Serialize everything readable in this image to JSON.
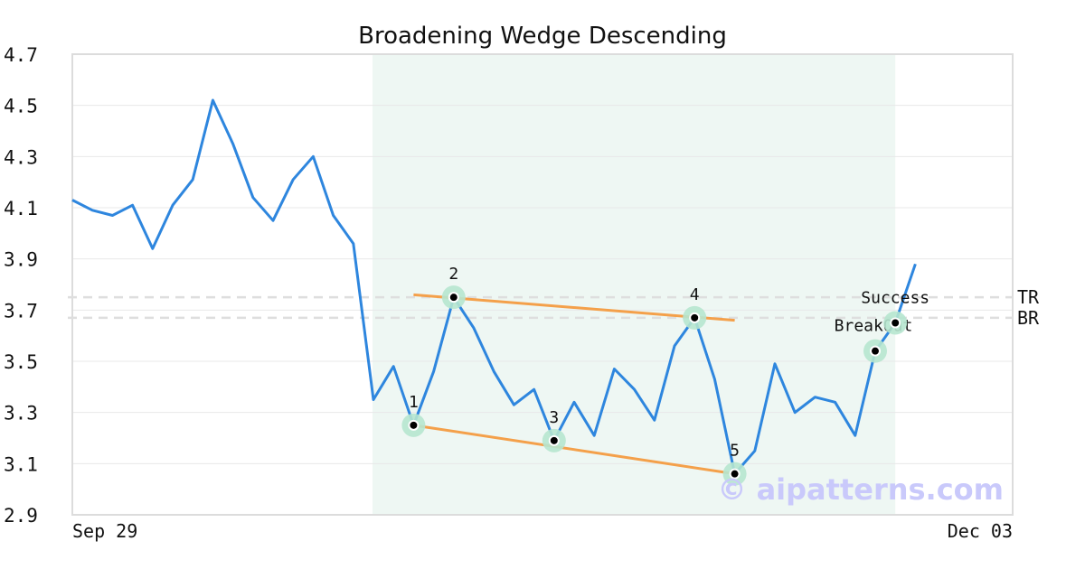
{
  "chart_data": {
    "type": "line",
    "title": "Broadening Wedge Descending",
    "xlabel": "",
    "ylabel": "",
    "ylim": [
      2.9,
      4.7
    ],
    "y_ticks": [
      "2.9",
      "3.1",
      "3.3",
      "3.5",
      "3.7",
      "3.9",
      "4.1",
      "4.3",
      "4.5",
      "4.7"
    ],
    "x_tick_labels": [
      "Sep 29",
      "Dec 03"
    ],
    "grid": true,
    "series": [
      {
        "values": [
          4.13,
          4.09,
          4.07,
          4.11,
          3.94,
          4.11,
          4.21,
          4.52,
          4.35,
          4.14,
          4.05,
          4.21,
          4.3,
          4.07,
          3.96,
          3.35,
          3.48,
          3.25,
          3.46,
          3.75,
          3.63,
          3.46,
          3.33,
          3.39,
          3.19,
          3.34,
          3.21,
          3.47,
          3.39,
          3.27,
          3.56,
          3.67,
          3.43,
          3.06,
          3.15,
          3.49,
          3.3,
          3.36,
          3.34,
          3.21,
          3.54,
          3.65,
          3.88
        ],
        "color": "#2e86de"
      }
    ],
    "pattern_region": {
      "start_index": 15,
      "end_index": 41,
      "color": "#eef7f3"
    },
    "pattern_points": [
      {
        "label": "1",
        "index": 17,
        "value": 3.25
      },
      {
        "label": "2",
        "index": 19,
        "value": 3.75
      },
      {
        "label": "3",
        "index": 24,
        "value": 3.19
      },
      {
        "label": "4",
        "index": 31,
        "value": 3.67
      },
      {
        "label": "5",
        "index": 33,
        "value": 3.06
      }
    ],
    "event_points": [
      {
        "label": "BreakOut",
        "index": 40,
        "value": 3.54
      },
      {
        "label": "Success",
        "index": 41,
        "value": 3.65
      }
    ],
    "trend_lines": [
      {
        "from_index": 17,
        "from_value": 3.76,
        "to_index": 33,
        "to_value": 3.66,
        "color": "#f4a04a"
      },
      {
        "from_index": 17,
        "from_value": 3.25,
        "to_index": 33,
        "to_value": 3.06,
        "color": "#f4a04a"
      }
    ],
    "reference_lines": [
      {
        "label": "TR",
        "value": 3.75
      },
      {
        "label": "BR",
        "value": 3.67
      }
    ],
    "watermark": "© aipatterns.com"
  }
}
